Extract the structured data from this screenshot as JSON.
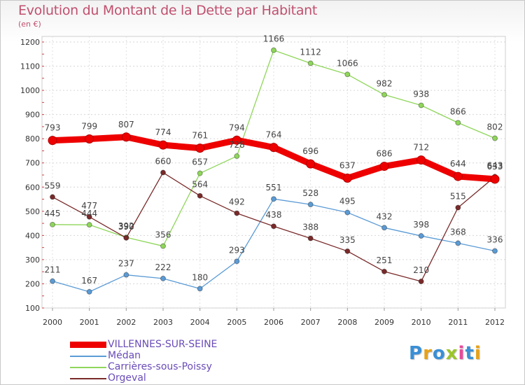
{
  "header": {
    "title": "Evolution du Montant de la Dette par Habitant",
    "subtitle": "(en €)"
  },
  "logo": {
    "text": "Proxiti",
    "colors": [
      "#3a8fd6",
      "#e6a21a",
      "#3a8fd6",
      "#9bc52b",
      "#e84a9a",
      "#3a8fd6",
      "#e6a21a"
    ]
  },
  "chart_data": {
    "type": "line",
    "title": "Evolution du Montant de la Dette par Habitant",
    "subtitle": "(en €)",
    "x": [
      "2000",
      "2001",
      "2002",
      "2003",
      "2004",
      "2005",
      "2006",
      "2007",
      "2008",
      "2009",
      "2010",
      "2011",
      "2012"
    ],
    "ylim": [
      100,
      1200
    ],
    "yticks": [
      100,
      200,
      300,
      400,
      500,
      600,
      700,
      800,
      900,
      1000,
      1100,
      1200
    ],
    "grid": true,
    "legend_position": "bottom-left",
    "series": [
      {
        "name": "VILLENNES-SUR-SEINE",
        "color": "#ee0000",
        "values": [
          793,
          799,
          807,
          774,
          761,
          794,
          764,
          696,
          637,
          686,
          712,
          644,
          633
        ]
      },
      {
        "name": "Médan",
        "color": "#5b9bd5",
        "values": [
          211,
          167,
          237,
          222,
          180,
          293,
          551,
          528,
          495,
          432,
          398,
          368,
          336
        ]
      },
      {
        "name": "Carrières-sous-Poissy",
        "color": "#8fd65a",
        "values": [
          445,
          444,
          392,
          356,
          657,
          728,
          1166,
          1112,
          1066,
          982,
          938,
          866,
          802
        ]
      },
      {
        "name": "Orgeval",
        "color": "#7a2a2a",
        "values": [
          559,
          477,
          390,
          660,
          564,
          492,
          438,
          388,
          335,
          251,
          210,
          515,
          643
        ]
      }
    ]
  }
}
